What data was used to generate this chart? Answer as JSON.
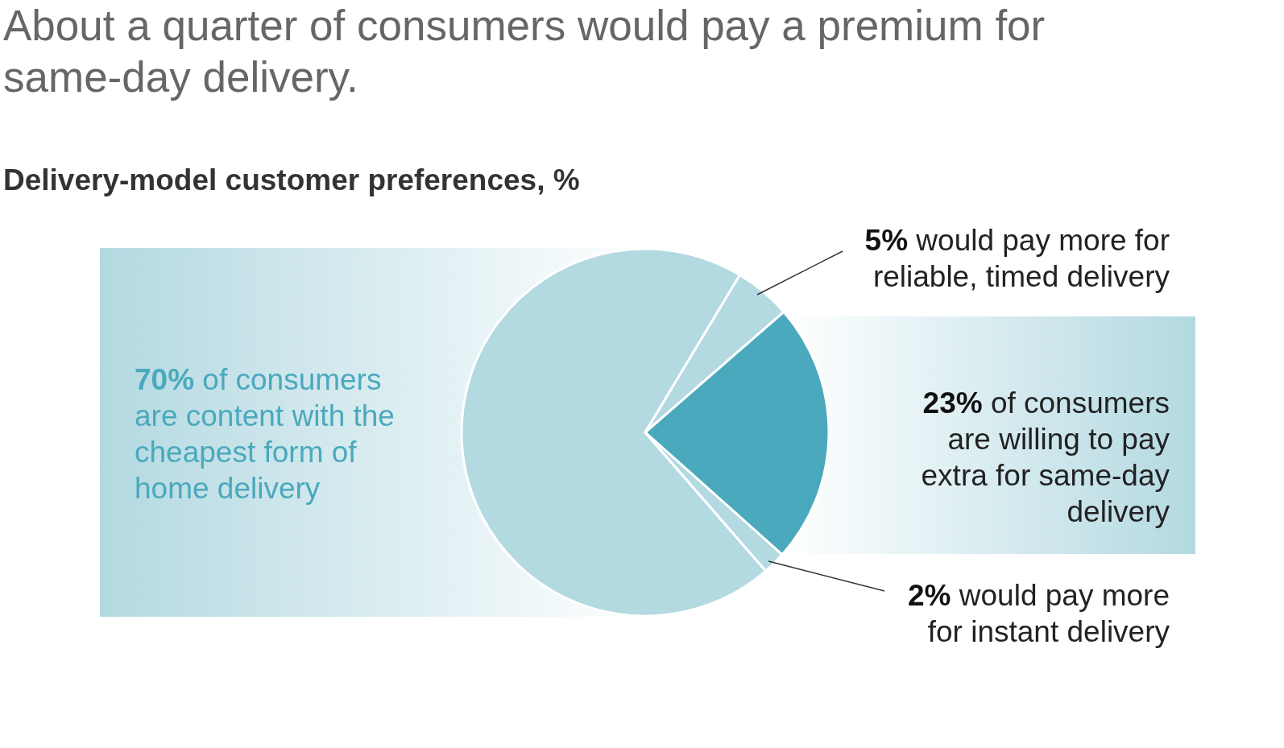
{
  "chart_data": {
    "type": "pie",
    "title": "About a quarter of consumers would pay a premium for same-day delivery.",
    "subtitle": "Delivery-model customer preferences, %",
    "categories": [
      "of consumers are content with the cheapest form of home delivery",
      "would pay more for reliable, timed delivery",
      "of consumers are willing to pay extra for same-day delivery",
      "would pay more for instant delivery"
    ],
    "values": [
      70,
      5,
      23,
      2
    ],
    "value_labels": [
      "70%",
      "5%",
      "23%",
      "2%"
    ],
    "colors": [
      "#b3d9e1",
      "#b3d9e1",
      "#4aa9bd",
      "#b3d9e1"
    ]
  }
}
